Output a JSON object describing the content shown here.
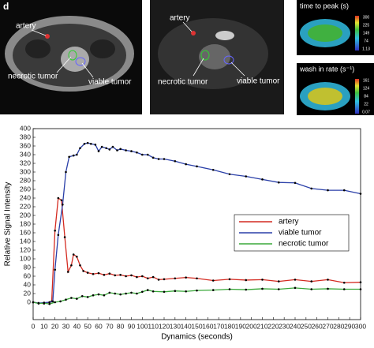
{
  "images": {
    "panel_letter": "d",
    "left": {
      "artery": "artery",
      "necrotic": "necrotic tumor",
      "viable": "viable tumor"
    },
    "middle": {
      "artery": "artery",
      "necrotic": "necrotic tumor",
      "viable": "viable tumor"
    },
    "map1": {
      "title": "time to peak (s)",
      "scale": [
        "300",
        "225",
        "149",
        "74",
        "1.13"
      ]
    },
    "map2": {
      "title": "wash in rate (s⁻¹)",
      "scale": [
        "161",
        "124",
        "84",
        "22",
        "0.07"
      ]
    }
  },
  "chart_data": {
    "type": "line",
    "x_label": "Dynamics (seconds)",
    "y_label": "Relative Signal Intensity",
    "xlim": [
      0,
      300
    ],
    "ylim": [
      -40,
      400
    ],
    "xticks": [
      0,
      10,
      20,
      30,
      40,
      50,
      60,
      70,
      80,
      90,
      100,
      110,
      120,
      130,
      140,
      150,
      160,
      170,
      180,
      190,
      200,
      210,
      220,
      230,
      240,
      250,
      260,
      270,
      280,
      290,
      300
    ],
    "yticks": [
      0,
      20,
      40,
      60,
      80,
      100,
      120,
      140,
      160,
      180,
      200,
      220,
      240,
      260,
      280,
      300,
      320,
      340,
      360,
      380,
      400
    ],
    "legend": "center-right",
    "series": [
      {
        "name": "artery",
        "color": "#d42a20",
        "x": [
          0,
          5,
          10,
          15,
          17,
          20,
          23,
          26,
          29,
          32,
          35,
          37,
          40,
          43,
          46,
          50,
          55,
          60,
          65,
          70,
          75,
          80,
          85,
          90,
          95,
          100,
          105,
          110,
          115,
          120,
          130,
          140,
          150,
          165,
          180,
          195,
          210,
          225,
          240,
          255,
          270,
          285,
          300
        ],
        "values": [
          0,
          -2,
          -3,
          0,
          2,
          165,
          240,
          235,
          150,
          70,
          85,
          110,
          105,
          85,
          72,
          68,
          65,
          67,
          63,
          66,
          62,
          63,
          60,
          62,
          58,
          60,
          55,
          58,
          52,
          53,
          55,
          57,
          55,
          50,
          53,
          51,
          52,
          48,
          52,
          48,
          52,
          45,
          46
        ]
      },
      {
        "name": "viable tumor",
        "color": "#2a3fa8",
        "x": [
          0,
          5,
          10,
          15,
          18,
          20,
          23,
          27,
          30,
          33,
          37,
          40,
          43,
          47,
          50,
          53,
          57,
          60,
          63,
          67,
          70,
          73,
          77,
          80,
          85,
          90,
          95,
          100,
          105,
          110,
          115,
          120,
          130,
          140,
          150,
          165,
          180,
          195,
          210,
          225,
          240,
          255,
          270,
          285,
          300
        ],
        "values": [
          0,
          -2,
          -1,
          0,
          2,
          75,
          155,
          225,
          300,
          335,
          338,
          340,
          355,
          365,
          367,
          365,
          363,
          348,
          358,
          355,
          352,
          358,
          350,
          353,
          350,
          348,
          345,
          340,
          340,
          333,
          330,
          330,
          325,
          318,
          313,
          305,
          295,
          290,
          283,
          276,
          275,
          262,
          258,
          258,
          250
        ]
      },
      {
        "name": "necrotic tumor",
        "color": "#3aa83a",
        "x": [
          0,
          5,
          10,
          15,
          20,
          25,
          30,
          35,
          40,
          45,
          50,
          55,
          60,
          65,
          70,
          75,
          80,
          85,
          90,
          95,
          100,
          105,
          110,
          120,
          130,
          140,
          150,
          165,
          180,
          195,
          210,
          225,
          240,
          255,
          270,
          285,
          300
        ],
        "values": [
          0,
          -3,
          -2,
          -4,
          0,
          2,
          6,
          10,
          8,
          14,
          12,
          16,
          18,
          16,
          22,
          20,
          18,
          20,
          22,
          20,
          24,
          28,
          25,
          24,
          26,
          25,
          27,
          28,
          30,
          29,
          31,
          30,
          33,
          30,
          31,
          30,
          30
        ]
      }
    ]
  }
}
